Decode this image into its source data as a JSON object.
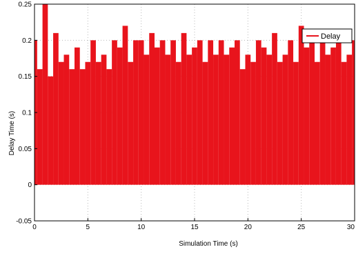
{
  "chart_data": {
    "type": "bar",
    "xlabel": "Simulation Time (s)",
    "ylabel": "Delay Time (s)",
    "xlim": [
      0,
      30
    ],
    "ylim": [
      -0.05,
      0.25
    ],
    "xticks": [
      0,
      5,
      10,
      15,
      20,
      25,
      30
    ],
    "yticks": [
      -0.05,
      0,
      0.05,
      0.1,
      0.15,
      0.2,
      0.25
    ],
    "grid": true,
    "legend_position": "top-right",
    "series": [
      {
        "name": "Delay",
        "color": "#e8141c",
        "x": [
          0,
          0.5,
          1,
          1.5,
          2,
          2.5,
          3,
          3.5,
          4,
          4.5,
          5,
          5.5,
          6,
          6.5,
          7,
          7.5,
          8,
          8.5,
          9,
          9.5,
          10,
          10.5,
          11,
          11.5,
          12,
          12.5,
          13,
          13.5,
          14,
          14.5,
          15,
          15.5,
          16,
          16.5,
          17,
          17.5,
          18,
          18.5,
          19,
          19.5,
          20,
          20.5,
          21,
          21.5,
          22,
          22.5,
          23,
          23.5,
          24,
          24.5,
          25,
          25.5,
          26,
          26.5,
          27,
          27.5,
          28,
          28.5,
          29,
          29.5,
          30
        ],
        "values": [
          0.2,
          0.16,
          0.25,
          0.15,
          0.21,
          0.17,
          0.18,
          0.16,
          0.19,
          0.16,
          0.17,
          0.2,
          0.17,
          0.18,
          0.16,
          0.2,
          0.19,
          0.22,
          0.17,
          0.2,
          0.2,
          0.18,
          0.21,
          0.19,
          0.2,
          0.18,
          0.2,
          0.17,
          0.21,
          0.18,
          0.19,
          0.2,
          0.17,
          0.2,
          0.18,
          0.2,
          0.18,
          0.19,
          0.2,
          0.16,
          0.18,
          0.17,
          0.2,
          0.19,
          0.18,
          0.21,
          0.17,
          0.18,
          0.2,
          0.17,
          0.22,
          0.19,
          0.21,
          0.17,
          0.2,
          0.18,
          0.19,
          0.2,
          0.17,
          0.18,
          0.2
        ]
      }
    ]
  }
}
